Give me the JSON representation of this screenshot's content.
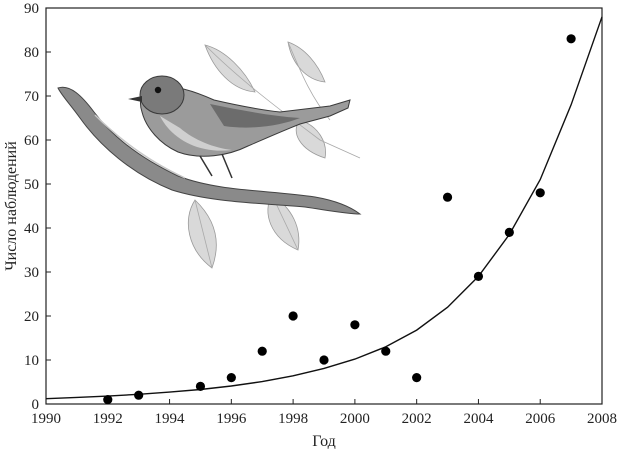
{
  "chart_data": {
    "type": "scatter",
    "title": "",
    "xlabel": "Год",
    "ylabel": "Число наблюдений",
    "xlim": [
      1990,
      2008
    ],
    "ylim": [
      0,
      90
    ],
    "xticks": [
      1990,
      1992,
      1994,
      1996,
      1998,
      2000,
      2002,
      2004,
      2006,
      2008
    ],
    "yticks": [
      0,
      10,
      20,
      30,
      40,
      50,
      60,
      70,
      80,
      90
    ],
    "grid": false,
    "legend": "none",
    "series": [
      {
        "type": "scatter",
        "x": [
          1992,
          1993,
          1995,
          1996,
          1997,
          1998,
          1999,
          2000,
          2001,
          2002,
          2003,
          2004,
          2005,
          2006,
          2007
        ],
        "y": [
          1,
          2,
          4,
          6,
          12,
          20,
          10,
          18,
          12,
          6,
          47,
          29,
          39,
          48,
          83
        ]
      },
      {
        "type": "line",
        "x": [
          1990,
          1991,
          1992,
          1993,
          1994,
          1995,
          1996,
          1997,
          1998,
          1999,
          2000,
          2001,
          2002,
          2003,
          2004,
          2005,
          2006,
          2007,
          2008
        ],
        "y": [
          1.2,
          1.5,
          1.8,
          2.2,
          2.7,
          3.3,
          4.1,
          5.1,
          6.4,
          8.1,
          10.2,
          13.0,
          16.8,
          22.0,
          29.0,
          38.5,
          51.0,
          68.0,
          88.0
        ]
      }
    ],
    "illustration": "bird-on-branch"
  }
}
